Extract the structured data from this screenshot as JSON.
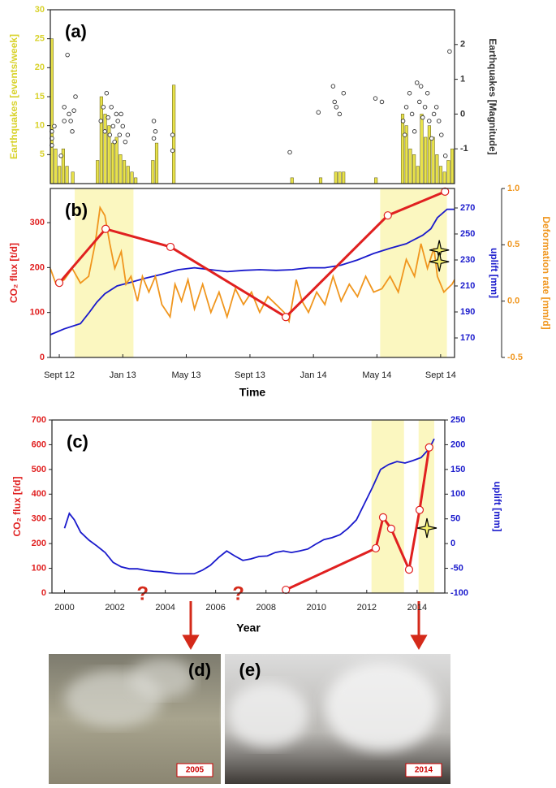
{
  "chart_data": [
    {
      "type": "bar",
      "panel_label": "(a)",
      "xlim": [
        2012.62,
        2014.74
      ],
      "ylim": [
        0,
        30
      ],
      "yticks": [
        5,
        10,
        15,
        20,
        25,
        30
      ],
      "ylabel": "Earthquakes [events/week]",
      "y2lim": [
        -2,
        3
      ],
      "y2ticks": [
        -1,
        0,
        1,
        2
      ],
      "y2label": "Earthquakes [Magnitude]",
      "series": [
        {
          "type": "bar",
          "color": "#e8e24a",
          "x": [
            2012.62,
            2012.64,
            2012.66,
            2012.68,
            2012.7,
            2012.73,
            2012.86,
            2012.88,
            2012.9,
            2012.92,
            2012.94,
            2012.96,
            2012.98,
            2013.0,
            2013.02,
            2013.04,
            2013.06,
            2013.15,
            2013.17,
            2013.26,
            2013.88,
            2014.03,
            2014.11,
            2014.13,
            2014.15,
            2014.32,
            2014.46,
            2014.48,
            2014.5,
            2014.52,
            2014.54,
            2014.56,
            2014.58,
            2014.6,
            2014.62,
            2014.64,
            2014.66,
            2014.68,
            2014.7,
            2014.72
          ],
          "values": [
            25,
            6,
            3,
            6,
            3,
            2,
            4,
            15,
            12,
            10,
            7,
            8,
            5,
            4,
            3,
            2,
            1,
            4,
            7,
            17,
            1,
            1,
            2,
            2,
            2,
            1,
            12,
            10,
            6,
            5,
            3,
            12,
            8,
            10,
            8,
            5,
            3,
            2,
            4,
            6
          ]
        },
        {
          "type": "scatter",
          "axis": "y2",
          "color": "#333333",
          "x": [
            2012.628,
            2012.628,
            2012.628,
            2012.641,
            2012.676,
            2012.693,
            2012.693,
            2012.71,
            2012.718,
            2012.727,
            2012.735,
            2012.744,
            2012.752,
            2012.885,
            2012.898,
            2012.906,
            2012.915,
            2012.923,
            2012.932,
            2012.94,
            2012.949,
            2012.957,
            2012.966,
            2012.974,
            2012.983,
            2012.991,
            2013.0,
            2013.013,
            2013.026,
            2013.163,
            2013.163,
            2013.171,
            2013.261,
            2013.261,
            2013.876,
            2014.026,
            2014.103,
            2014.111,
            2014.12,
            2014.137,
            2014.158,
            2014.325,
            2014.359,
            2014.47,
            2014.479,
            2014.487,
            2014.504,
            2014.517,
            2014.53,
            2014.543,
            2014.556,
            2014.564,
            2014.573,
            2014.585,
            2014.598,
            2014.607,
            2014.62,
            2014.632,
            2014.645,
            2014.658,
            2014.671,
            2014.692,
            2014.714
          ],
          "values": [
            -0.5,
            -0.7,
            -0.9,
            -0.35,
            -1.2,
            0.2,
            -0.2,
            1.7,
            0,
            -0.2,
            -0.5,
            0.1,
            0.5,
            -0.2,
            0.2,
            -0.5,
            0.6,
            -0.1,
            -0.6,
            0.2,
            -0.35,
            -0.8,
            0,
            -0.2,
            -0.6,
            0,
            -0.35,
            -0.8,
            -0.6,
            -0.2,
            -0.7,
            -0.5,
            -0.6,
            -1.05,
            -1.1,
            0.05,
            0.8,
            0.35,
            0.2,
            0,
            0.6,
            0.45,
            0.35,
            -0.2,
            -0.6,
            0.2,
            0.6,
            0,
            -0.5,
            0.9,
            0.35,
            0.8,
            -0.1,
            0.2,
            0.6,
            -0.2,
            -0.7,
            0,
            0.2,
            -0.2,
            -0.6,
            -1.2,
            1.8
          ]
        }
      ]
    },
    {
      "type": "line",
      "panel_label": "(b)",
      "xlabel": "Time",
      "xlim": [
        2012.62,
        2014.74
      ],
      "xticks": [
        {
          "value": 2012.667,
          "label": "Sept 12"
        },
        {
          "value": 2013.0,
          "label": "Jan 13"
        },
        {
          "value": 2013.333,
          "label": "May 13"
        },
        {
          "value": 2013.667,
          "label": "Sept 13"
        },
        {
          "value": 2014.0,
          "label": "Jan 14"
        },
        {
          "value": 2014.333,
          "label": "May 14"
        },
        {
          "value": 2014.667,
          "label": "Sept 14"
        }
      ],
      "ylim": [
        0,
        376
      ],
      "yticks": [
        0,
        100,
        200,
        300
      ],
      "ylabel": "CO₂ flux [t/d]",
      "y2lim": [
        155,
        285
      ],
      "y2ticks": [
        170,
        190,
        210,
        230,
        250,
        270
      ],
      "y2label": "uplift [mm]",
      "y3lim": [
        -0.5,
        1.0
      ],
      "y3ticks": [
        -0.5,
        {
          "value": 0,
          "label": "0.0"
        },
        0.5,
        {
          "value": 1,
          "label": "1.0"
        }
      ],
      "y3label": "Deformation rate [mm/d]",
      "highlights": [
        [
          2012.748,
          2013.056
        ],
        [
          2014.35,
          2014.7
        ]
      ],
      "series": [
        {
          "type": "line",
          "axis": "y2",
          "color": "#1a1acc",
          "x": [
            2012.62,
            2012.693,
            2012.778,
            2012.821,
            2012.864,
            2012.906,
            2012.97,
            2013.034,
            2013.12,
            2013.205,
            2013.291,
            2013.376,
            2013.462,
            2013.547,
            2013.633,
            2013.718,
            2013.804,
            2013.889,
            2013.974,
            2014.06,
            2014.145,
            2014.231,
            2014.316,
            2014.402,
            2014.487,
            2014.573,
            2014.616,
            2014.65,
            2014.701,
            2014.74
          ],
          "values": [
            172.5,
            177,
            181,
            189,
            197.5,
            204,
            210,
            212.5,
            216,
            219,
            222.5,
            224,
            222.5,
            221,
            222,
            222.5,
            222,
            222.5,
            224,
            224,
            226,
            230,
            235,
            239,
            242.5,
            249,
            254,
            262.5,
            269,
            269
          ]
        },
        {
          "type": "line",
          "axis": "y3",
          "color": "#f0961e",
          "x": [
            2012.62,
            2012.65,
            2012.693,
            2012.735,
            2012.778,
            2012.821,
            2012.855,
            2012.881,
            2012.906,
            2012.932,
            2012.958,
            2012.992,
            2013.017,
            2013.043,
            2013.077,
            2013.103,
            2013.137,
            2013.171,
            2013.205,
            2013.248,
            2013.274,
            2013.308,
            2013.342,
            2013.376,
            2013.419,
            2013.462,
            2013.505,
            2013.547,
            2013.59,
            2013.633,
            2013.675,
            2013.718,
            2013.761,
            2013.804,
            2013.846,
            2013.872,
            2013.91,
            2013.94,
            2013.974,
            2014.017,
            2014.06,
            2014.103,
            2014.145,
            2014.188,
            2014.231,
            2014.274,
            2014.316,
            2014.359,
            2014.402,
            2014.445,
            2014.487,
            2014.53,
            2014.564,
            2014.598,
            2014.632,
            2014.65,
            2014.684,
            2014.727,
            2014.74
          ],
          "values": [
            0.29,
            0.15,
            0.19,
            0.29,
            0.16,
            0.22,
            0.51,
            0.83,
            0.76,
            0.51,
            0.29,
            0.44,
            0.15,
            0.22,
            0.0,
            0.22,
            0.08,
            0.22,
            -0.03,
            -0.14,
            0.15,
            0.0,
            0.19,
            -0.07,
            0.15,
            -0.1,
            0.08,
            -0.14,
            0.11,
            -0.03,
            0.08,
            -0.1,
            0.04,
            -0.03,
            -0.1,
            -0.18,
            0.19,
            0.0,
            -0.1,
            0.08,
            -0.03,
            0.22,
            0.0,
            0.15,
            0.04,
            0.22,
            0.08,
            0.11,
            0.22,
            0.08,
            0.37,
            0.22,
            0.51,
            0.29,
            0.47,
            0.22,
            0.08,
            0.15,
            0.19
          ]
        },
        {
          "type": "line",
          "color": "#e02020",
          "markers": true,
          "x": [
            2012.667,
            2012.91,
            2013.25,
            2013.855,
            2014.39,
            2014.69
          ],
          "values": [
            166,
            286,
            246,
            90,
            316,
            369
          ]
        },
        {
          "type": "scatter",
          "marker": "star",
          "color": "#f5ef6a",
          "x": [
            2014.66,
            2014.66
          ],
          "values": [
            239,
            213
          ]
        }
      ]
    },
    {
      "type": "line",
      "panel_label": "(c)",
      "xlabel": "Year",
      "xlim": [
        1999.5,
        2015.1
      ],
      "xticks": [
        2000,
        2002,
        2004,
        2006,
        2008,
        2010,
        2012,
        2014
      ],
      "ylim": [
        0,
        700
      ],
      "yticks": [
        0,
        100,
        200,
        300,
        400,
        500,
        600,
        700
      ],
      "ylabel": "CO₂ flux [t/d]",
      "y2lim": [
        -100,
        250
      ],
      "y2ticks": [
        -100,
        -50,
        0,
        50,
        100,
        150,
        200,
        250
      ],
      "y2label": "uplift [mm]",
      "highlights": [
        [
          2012.19,
          2013.48
        ],
        [
          2014.06,
          2014.68
        ]
      ],
      "annotations": [
        {
          "text": "?",
          "x": 2003.1
        },
        {
          "text": "?",
          "x": 2006.9
        }
      ],
      "series": [
        {
          "type": "line",
          "axis": "y2",
          "color": "#1a1acc",
          "x": [
            2000,
            2000.19,
            2000.39,
            2000.64,
            2000.97,
            2001.29,
            2001.61,
            2001.93,
            2002.25,
            2002.57,
            2002.9,
            2003.22,
            2003.54,
            2003.86,
            2004.18,
            2004.51,
            2004.83,
            2005.15,
            2005.47,
            2005.79,
            2006.12,
            2006.44,
            2006.76,
            2007.08,
            2007.4,
            2007.72,
            2008.05,
            2008.37,
            2008.69,
            2009.01,
            2009.33,
            2009.66,
            2009.98,
            2010.3,
            2010.62,
            2010.94,
            2011.26,
            2011.59,
            2011.91,
            2012.23,
            2012.55,
            2012.87,
            2013.2,
            2013.52,
            2013.84,
            2014.16,
            2014.48,
            2014.68
          ],
          "values": [
            31,
            61,
            48,
            23,
            7,
            -5,
            -18,
            -38,
            -47,
            -51,
            -51,
            -54,
            -56,
            -57,
            -59,
            -61,
            -61,
            -61,
            -54,
            -44,
            -28,
            -15,
            -25,
            -34,
            -31,
            -26,
            -25,
            -18,
            -15,
            -18,
            -15,
            -11,
            -1,
            8,
            12,
            18,
            31,
            48,
            81,
            114,
            150,
            160,
            166,
            163,
            168,
            174,
            192,
            212
          ]
        },
        {
          "type": "line",
          "color": "#e02020",
          "markers": true,
          "x": [
            2008.79,
            2012.36,
            2012.65,
            2012.97,
            2013.68,
            2014.1,
            2014.48
          ],
          "values": [
            13,
            181,
            306,
            260,
            95,
            336,
            589
          ]
        },
        {
          "type": "scatter",
          "marker": "star",
          "color": "#f5ef6a",
          "x": [
            2014.39
          ],
          "values": [
            263
          ]
        }
      ]
    }
  ],
  "photos": [
    {
      "label": "(d)",
      "year": "2005"
    },
    {
      "label": "(e)",
      "year": "2014"
    }
  ]
}
